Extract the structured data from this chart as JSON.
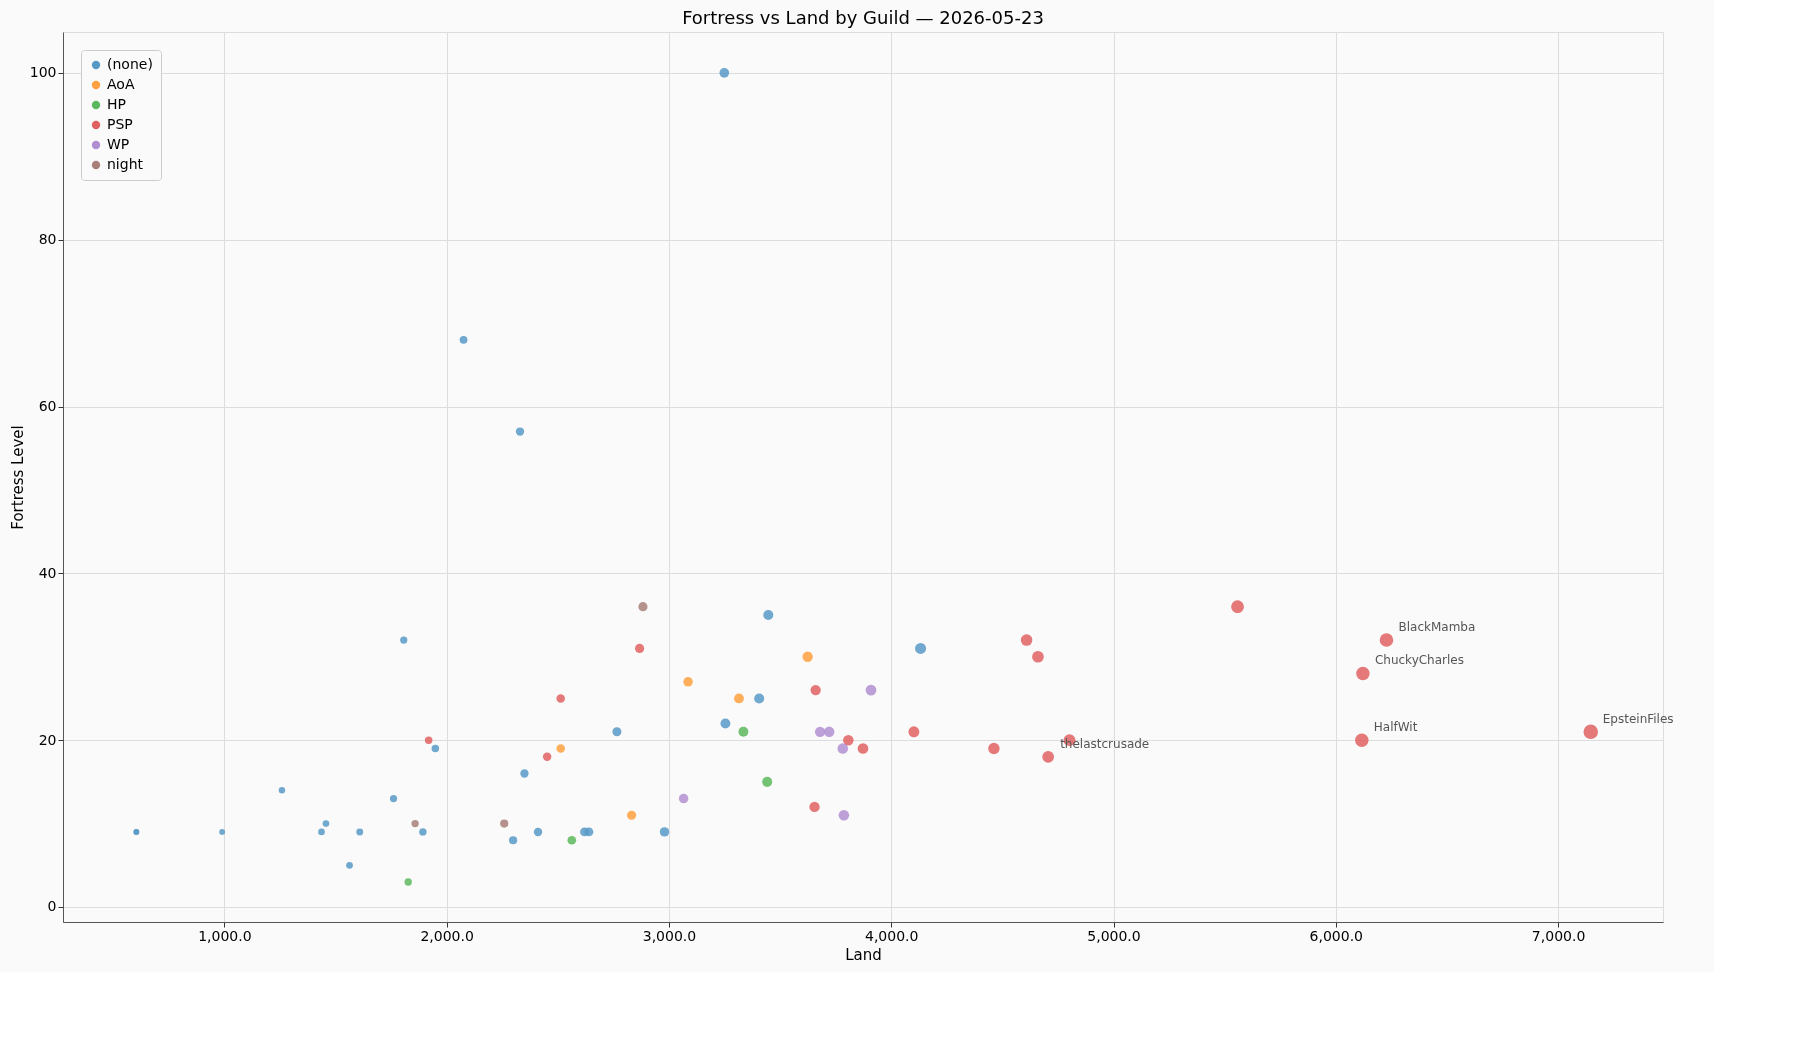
{
  "chart_data": {
    "type": "bubble",
    "title": "Fortress vs Land by Guild — 2026-05-23",
    "xlabel": "Land",
    "ylabel": "Fortress Level",
    "xlim": [
      274,
      7472
    ],
    "ylim": [
      -1.8,
      104.9
    ],
    "xticks": [
      {
        "value": 1000,
        "label": "1,000.0"
      },
      {
        "value": 2000,
        "label": "2,000.0"
      },
      {
        "value": 3000,
        "label": "3,000.0"
      },
      {
        "value": 4000,
        "label": "4,000.0"
      },
      {
        "value": 5000,
        "label": "5,000.0"
      },
      {
        "value": 6000,
        "label": "6,000.0"
      },
      {
        "value": 7000,
        "label": "7,000.0"
      }
    ],
    "yticks": [
      0,
      20,
      40,
      60,
      80,
      100
    ],
    "grid": true,
    "legend": "top left",
    "marker": "circle",
    "series": [
      {
        "name": "(none)",
        "color": "#5799c7",
        "x": [
          604,
          604,
          990,
          1259,
          1437,
          1457,
          1609,
          1563,
          1761,
          1807,
          1893,
          1949,
          2076,
          2299,
          2330,
          2350,
          2411,
          2620,
          2640,
          2766,
          2980,
          3249,
          3254,
          3406,
          3447,
          4132
        ],
        "values": [
          9,
          9,
          9,
          14,
          9,
          10,
          9,
          5,
          13,
          32,
          9,
          19,
          68,
          8,
          57,
          16,
          9,
          9,
          9,
          21,
          9,
          100,
          22,
          25,
          35,
          31
        ],
        "sizes": [
          0.16,
          0.16,
          0.16,
          0.2,
          0.21,
          0.21,
          0.23,
          0.22,
          0.25,
          0.25,
          0.26,
          0.27,
          0.29,
          0.32,
          0.33,
          0.33,
          0.34,
          0.37,
          0.37,
          0.39,
          0.42,
          0.45,
          0.46,
          0.48,
          0.48,
          0.58
        ]
      },
      {
        "name": "AoA",
        "color": "#ffa040",
        "x": [
          2513,
          2832,
          3086,
          3315,
          3624
        ],
        "values": [
          19,
          11,
          27,
          25,
          30
        ],
        "sizes": [
          0.35,
          0.4,
          0.43,
          0.46,
          0.51
        ]
      },
      {
        "name": "HP",
        "color": "#5cb85c",
        "x": [
          1827,
          2563,
          3335,
          3442
        ],
        "values": [
          3,
          8,
          21,
          15
        ],
        "sizes": [
          0.26,
          0.36,
          0.47,
          0.48
        ]
      },
      {
        "name": "PSP",
        "color": "#e06060",
        "x": [
          1919,
          2452,
          2513,
          2868,
          3660,
          3655,
          3807,
          3873,
          4102,
          4462,
          4609,
          4660,
          4706,
          4802,
          5558,
          6228,
          6122,
          6117,
          7147
        ],
        "values": [
          20,
          18,
          25,
          31,
          26,
          12,
          20,
          19,
          21,
          19,
          32,
          30,
          18,
          20,
          36,
          32,
          28,
          20,
          21
        ],
        "sizes": [
          0.27,
          0.34,
          0.35,
          0.4,
          0.51,
          0.51,
          0.53,
          0.54,
          0.57,
          0.62,
          0.64,
          0.65,
          0.66,
          0.67,
          0.78,
          0.87,
          0.86,
          0.86,
          1
        ]
      },
      {
        "name": "WP",
        "color": "#b08fd0",
        "x": [
          3066,
          3680,
          3721,
          3782,
          3787,
          3909
        ],
        "values": [
          13,
          21,
          21,
          19,
          11,
          26
        ],
        "sizes": [
          0.43,
          0.51,
          0.52,
          0.53,
          0.53,
          0.55
        ]
      },
      {
        "name": "night",
        "color": "#a88078",
        "x": [
          1858,
          2259,
          2883
        ],
        "values": [
          10,
          10,
          36
        ],
        "sizes": [
          0.26,
          0.32,
          0.4
        ]
      }
    ],
    "annotations": [
      {
        "text": "BlackMamba",
        "x": 6228,
        "y": 32
      },
      {
        "text": "ChuckyCharles",
        "x": 6122,
        "y": 28
      },
      {
        "text": "HalfWit",
        "x": 6117,
        "y": 20
      },
      {
        "text": "EpsteinFiles",
        "x": 7147,
        "y": 21
      },
      {
        "text": "thelastcrusade",
        "x": 4706,
        "y": 18
      }
    ]
  }
}
